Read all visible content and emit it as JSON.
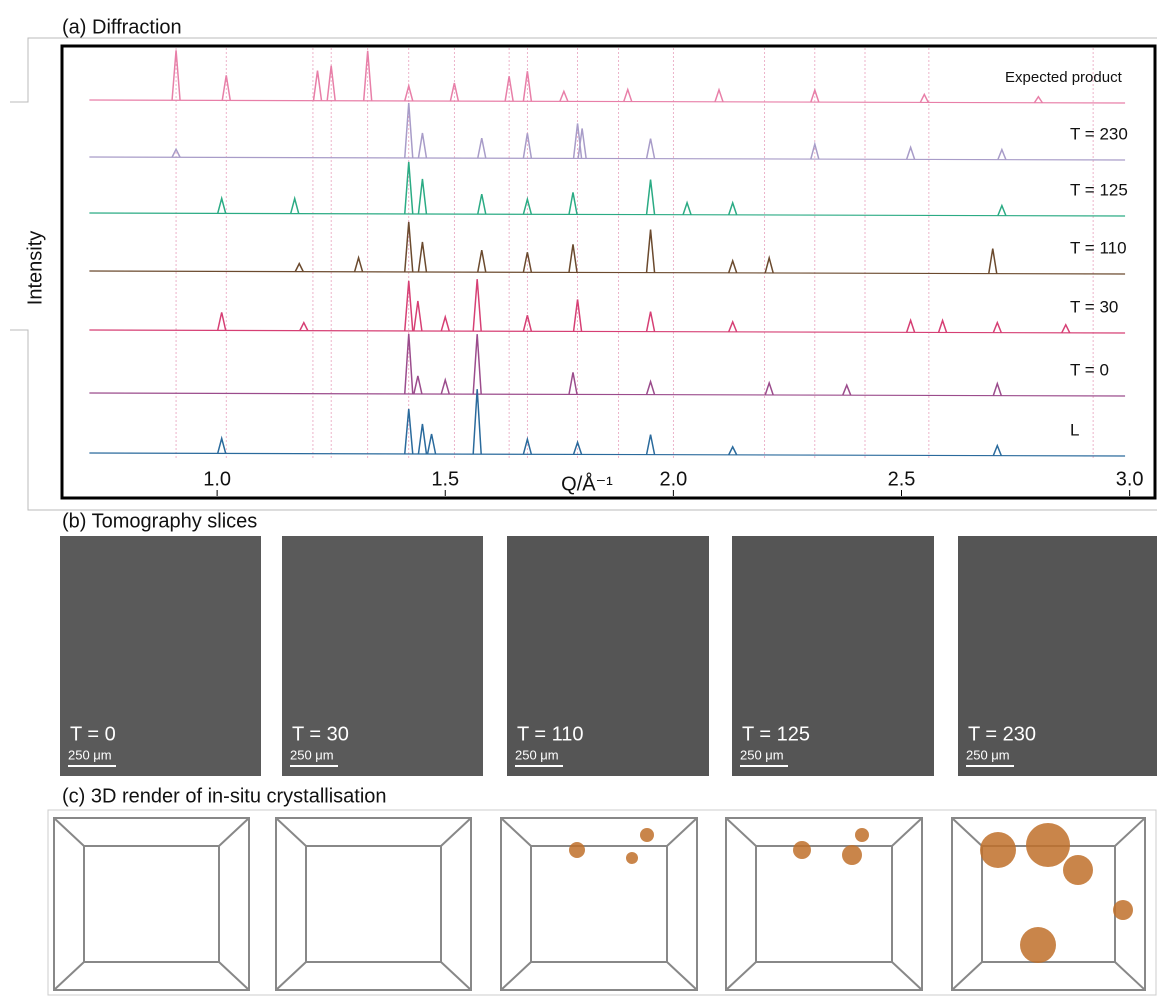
{
  "chart_data": {
    "type": "line",
    "title": "(a) Diffraction",
    "xlabel": "Q/Å⁻¹",
    "ylabel": "Intensity",
    "xlim": [
      0.66,
      3.06
    ],
    "xticks": [
      {
        "value": 1,
        "label": "1.0"
      },
      {
        "value": 1.5,
        "label": "1.5"
      },
      {
        "value": 2,
        "label": "2.0"
      },
      {
        "value": 2.5,
        "label": "2.5"
      },
      {
        "value": 3,
        "label": "3.0"
      }
    ],
    "reference_lines": [
      0.91,
      1.02,
      1.21,
      1.25,
      1.33,
      1.42,
      1.52,
      1.64,
      1.68,
      1.79,
      1.88,
      2.0,
      2.2,
      2.31,
      2.42,
      2.56,
      2.92
    ],
    "series": [
      {
        "name": "Expected product",
        "color": "#e87fa8",
        "x": [
          0.91,
          1.02,
          1.22,
          1.25,
          1.33,
          1.42,
          1.52,
          1.64,
          1.68,
          1.76,
          1.9,
          2.1,
          2.31,
          2.55,
          2.8
        ],
        "values": [
          50,
          25,
          30,
          35,
          50,
          15,
          18,
          25,
          30,
          10,
          12,
          12,
          12,
          8,
          6
        ]
      },
      {
        "name": "T = 230",
        "color": "#a89cc8",
        "x": [
          0.91,
          1.42,
          1.45,
          1.58,
          1.68,
          1.79,
          1.8,
          1.95,
          2.31,
          2.52,
          2.72
        ],
        "values": [
          8,
          55,
          25,
          20,
          25,
          35,
          30,
          20,
          15,
          12,
          10
        ]
      },
      {
        "name": "T = 125",
        "color": "#2bab84",
        "x": [
          1.01,
          1.17,
          1.42,
          1.45,
          1.58,
          1.68,
          1.78,
          1.95,
          2.03,
          2.13,
          2.72
        ],
        "values": [
          15,
          15,
          52,
          35,
          20,
          15,
          22,
          35,
          12,
          12,
          10
        ]
      },
      {
        "name": "T = 110",
        "color": "#6b4a2e",
        "x": [
          1.18,
          1.31,
          1.42,
          1.45,
          1.58,
          1.68,
          1.78,
          1.95,
          2.13,
          2.21,
          2.7
        ],
        "values": [
          8,
          14,
          50,
          30,
          22,
          20,
          28,
          43,
          12,
          15,
          25
        ]
      },
      {
        "name": "T = 30",
        "color": "#d63f74",
        "x": [
          1.01,
          1.19,
          1.42,
          1.44,
          1.5,
          1.57,
          1.68,
          1.79,
          1.95,
          2.13,
          2.52,
          2.59,
          2.71,
          2.86
        ],
        "values": [
          18,
          8,
          50,
          30,
          14,
          52,
          16,
          32,
          20,
          10,
          12,
          12,
          10,
          8
        ]
      },
      {
        "name": "T = 0",
        "color": "#9b4c8c",
        "x": [
          1.42,
          1.44,
          1.5,
          1.57,
          1.78,
          1.95,
          2.21,
          2.38,
          2.71
        ],
        "values": [
          60,
          18,
          14,
          60,
          22,
          13,
          12,
          10,
          12
        ]
      },
      {
        "name": "L",
        "color": "#2a6a9c",
        "x": [
          1.01,
          1.42,
          1.45,
          1.47,
          1.57,
          1.68,
          1.79,
          1.95,
          2.13,
          2.71
        ],
        "values": [
          15,
          45,
          30,
          20,
          65,
          15,
          12,
          20,
          8,
          10
        ]
      }
    ]
  },
  "tomography": {
    "title": "(b) Tomography slices",
    "slices": [
      {
        "label": "T = 0",
        "scale": "250 μm"
      },
      {
        "label": "T = 30",
        "scale": "250 μm"
      },
      {
        "label": "T = 110",
        "scale": "250 μm"
      },
      {
        "label": "T = 125",
        "scale": "250 μm"
      },
      {
        "label": "T = 230",
        "scale": "250 μm"
      }
    ]
  },
  "render": {
    "title": "(c) 3D render of in-situ crystallisation"
  }
}
